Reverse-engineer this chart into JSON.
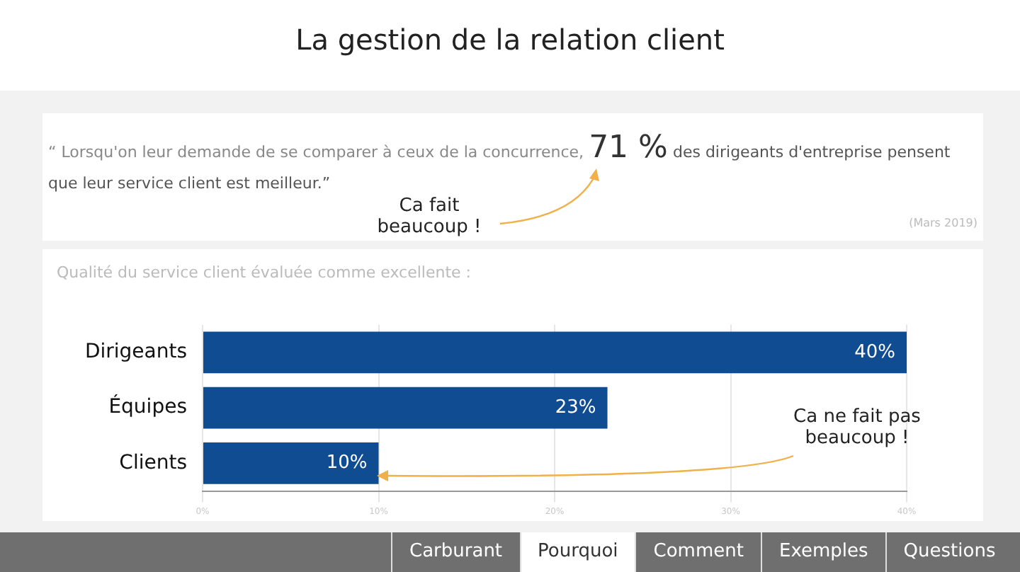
{
  "chart_data": {
    "type": "bar",
    "orientation": "horizontal",
    "title": "La gestion de la relation client",
    "subtitle": "Qualité du service client évaluée comme excellente :",
    "categories": [
      "Dirigeants",
      "Équipes",
      "Clients"
    ],
    "values": [
      40,
      23,
      10
    ],
    "color": "#0f4c92",
    "value_labels": [
      "40%",
      "23%",
      "10%"
    ],
    "xlim": [
      0,
      40
    ],
    "xticks": [
      {
        "value": 0,
        "label": "0%"
      },
      {
        "value": 10,
        "label": "10%"
      },
      {
        "value": 20,
        "label": "20%"
      },
      {
        "value": 30,
        "label": "30%"
      },
      {
        "value": 40,
        "label": "40%"
      }
    ],
    "grid": "x",
    "legend": false,
    "annotations": [
      "“ Lorsqu'on leur demande de se comparer à ceux de la concurrence,",
      "71 %",
      "des dirigeants d'entreprise pensent que leur service client est meilleur.”",
      "Ca fait beaucoup !",
      "(Mars 2019)",
      "Ca ne fait pas beaucoup !",
      "Carburant",
      "Pourquoi",
      "Comment",
      "Exemples",
      "Questions"
    ]
  }
}
